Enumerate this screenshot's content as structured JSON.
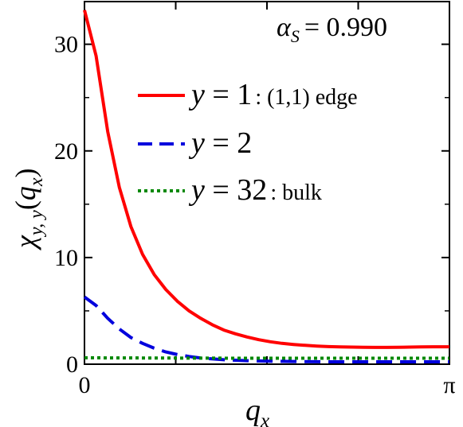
{
  "chart_data": {
    "type": "line",
    "annotation": {
      "alpha_prefix": "α",
      "alpha_sub": "S",
      "alpha_value": "= 0.990"
    },
    "ylabel": {
      "main": "χ",
      "sub": "y, y",
      "arg_open": "(",
      "arg_var": "q",
      "arg_sub": "x",
      "arg_close": ")"
    },
    "xlabel": {
      "var": "q",
      "sub": "x"
    },
    "x_ticks": [
      "0",
      "π"
    ],
    "y_ticks": [
      0,
      10,
      20,
      30
    ],
    "xlim": [
      0,
      3.14159
    ],
    "ylim": [
      0,
      34
    ],
    "legend_position": "upper-right",
    "series": [
      {
        "name": "y = 1",
        "legend_var": "y",
        "legend_eq": " = 1",
        "legend_suffix": ": (1,1) edge",
        "color": "#ff0000",
        "dash": "solid",
        "x": [
          0.0,
          0.1,
          0.2,
          0.3,
          0.4,
          0.5,
          0.6,
          0.7,
          0.8,
          0.9,
          1.0,
          1.1,
          1.2,
          1.3,
          1.4,
          1.5,
          1.6,
          1.7,
          1.8,
          1.9,
          2.0,
          2.1,
          2.2,
          2.3,
          2.4,
          2.5,
          2.6,
          2.7,
          2.8,
          2.9,
          3.0,
          3.14
        ],
        "values": [
          33.2,
          28.9,
          21.8,
          16.6,
          12.9,
          10.3,
          8.4,
          7.0,
          5.9,
          5.0,
          4.3,
          3.7,
          3.2,
          2.85,
          2.55,
          2.3,
          2.1,
          1.95,
          1.85,
          1.77,
          1.7,
          1.65,
          1.62,
          1.6,
          1.58,
          1.57,
          1.57,
          1.58,
          1.6,
          1.62,
          1.63,
          1.63
        ]
      },
      {
        "name": "y = 2",
        "legend_var": "y",
        "legend_eq": " = 2",
        "legend_suffix": "",
        "color": "#0000dd",
        "dash": "dashed",
        "x": [
          0.0,
          0.1,
          0.2,
          0.3,
          0.4,
          0.5,
          0.6,
          0.7,
          0.8,
          0.9,
          1.0,
          1.2,
          1.4,
          1.6,
          1.8,
          2.0,
          2.2,
          2.4,
          2.6,
          2.8,
          3.0,
          3.14
        ],
        "values": [
          6.3,
          5.5,
          4.3,
          3.3,
          2.5,
          1.95,
          1.5,
          1.15,
          0.9,
          0.72,
          0.58,
          0.42,
          0.33,
          0.28,
          0.25,
          0.23,
          0.22,
          0.22,
          0.22,
          0.22,
          0.22,
          0.22
        ]
      },
      {
        "name": "y = 32",
        "legend_var": "y",
        "legend_eq": " = 32",
        "legend_suffix": ": bulk",
        "color": "#008800",
        "dash": "dotted",
        "x": [
          0.0,
          0.5,
          1.0,
          1.5,
          2.0,
          2.5,
          3.0,
          3.14
        ],
        "values": [
          0.6,
          0.58,
          0.57,
          0.56,
          0.56,
          0.56,
          0.56,
          0.56
        ]
      }
    ]
  }
}
